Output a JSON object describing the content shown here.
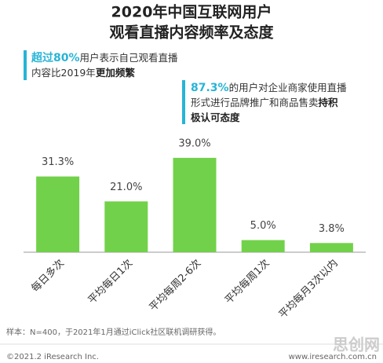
{
  "chart_data": {
    "type": "bar",
    "title": [
      "2020年中国互联网用户",
      "观看直播内容频率及态度"
    ],
    "categories": [
      "每日多次",
      "平均每日1次",
      "平均每周2-6次",
      "平均每周1次",
      "平均每月3次以内"
    ],
    "values": [
      31.3,
      21.0,
      39.0,
      5.0,
      3.8
    ],
    "value_labels": [
      "31.3%",
      "21.0%",
      "39.0%",
      "5.0%",
      "3.8%"
    ],
    "color": "#72d14a",
    "annotations": [
      {
        "lines": [
          [
            {
              "text": "超过80%",
              "style": "hl"
            },
            {
              "text": "用户表示自己观看直播",
              "style": "plain"
            }
          ],
          [
            {
              "text": "内容比2019年",
              "style": "plain"
            },
            {
              "text": "更加频繁",
              "style": "bold"
            }
          ]
        ]
      },
      {
        "lines": [
          [
            {
              "text": "87.3%",
              "style": "hl"
            },
            {
              "text": "的用户对企业商家使用直播",
              "style": "plain"
            }
          ],
          [
            {
              "text": "形式进行品牌推广和商品售卖",
              "style": "plain"
            },
            {
              "text": "持积",
              "style": "bold"
            }
          ],
          [
            {
              "text": "极认可态度",
              "style": "bold"
            }
          ]
        ]
      }
    ],
    "source": "样本：N=400，于2021年1月通过iClick社区联机调研获得。",
    "copyright": "©2021.2 iResearch Inc.",
    "website": "www.iresearch.com.cn",
    "watermark": "思创网"
  }
}
